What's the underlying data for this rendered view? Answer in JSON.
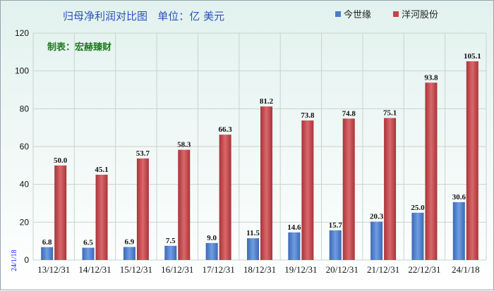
{
  "chart_data": {
    "type": "bar",
    "title": "归母净利润对比图   单位：亿 美元",
    "maker_note": "制表：宏赫臻财",
    "side_date": "24/1/18",
    "categories": [
      "13/12/31",
      "14/12/31",
      "15/12/31",
      "16/12/31",
      "17/12/31",
      "18/12/31",
      "19/12/31",
      "20/12/31",
      "21/12/31",
      "22/12/31",
      "24/1/18"
    ],
    "series": [
      {
        "name": "今世缘",
        "color": "#4a7cc9",
        "values": [
          6.8,
          6.5,
          6.9,
          7.5,
          9.0,
          11.5,
          14.6,
          15.7,
          20.3,
          25.0,
          30.6
        ],
        "labels": [
          "6.8",
          "6.5",
          "6.9",
          "7.5",
          "9.0",
          "11.5",
          "14.6",
          "15.7",
          "20.3",
          "25.0",
          "30.6"
        ]
      },
      {
        "name": "洋河股份",
        "color": "#c0474a",
        "values": [
          50.0,
          45.1,
          53.7,
          58.3,
          66.3,
          81.2,
          73.8,
          74.8,
          75.1,
          93.8,
          105.1
        ],
        "labels": [
          "50.0",
          "45.1",
          "53.7",
          "58.3",
          "66.3",
          "81.2",
          "73.8",
          "74.8",
          "75.1",
          "93.8",
          "105.1"
        ]
      }
    ],
    "ylim": [
      0,
      120
    ],
    "yticks": [
      "0",
      "20",
      "40",
      "60",
      "80",
      "100",
      "120"
    ],
    "grid": true,
    "legend": "top-right"
  }
}
